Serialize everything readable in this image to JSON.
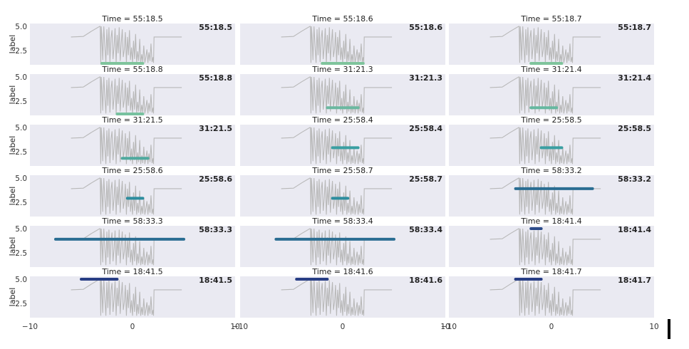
{
  "chart_data": {
    "type": "line",
    "layout": {
      "rows": 6,
      "cols": 3,
      "sharex": true,
      "sharey": true
    },
    "xlim": [
      -10,
      10
    ],
    "ylim": [
      1.0,
      5.3
    ],
    "x_ticks": [
      "−10",
      "0",
      "10"
    ],
    "y_ticks": [
      {
        "value": 5.0,
        "label": "5.0"
      },
      {
        "value": 2.5,
        "label": "2.5"
      }
    ],
    "ylabel": "label",
    "grid": false,
    "background": "#eaeaf2",
    "signal_color": "#b8b8b8",
    "signal": {
      "x": [
        -6.0,
        -4.8,
        -4.0,
        -3.2,
        -3.15,
        -3.1,
        -3.05,
        -3.0,
        -2.9,
        -2.8,
        -2.7,
        -2.6,
        -2.5,
        -2.4,
        -2.3,
        -2.2,
        -2.1,
        -2.0,
        -1.9,
        -1.8,
        -1.7,
        -1.6,
        -1.5,
        -1.4,
        -1.3,
        -1.2,
        -1.1,
        -1.0,
        -0.9,
        -0.8,
        -0.7,
        -0.6,
        -0.5,
        -0.4,
        -0.3,
        -0.2,
        -0.1,
        0.0,
        0.1,
        0.2,
        0.3,
        0.4,
        0.5,
        0.6,
        0.7,
        0.8,
        0.9,
        1.0,
        1.1,
        1.2,
        1.3,
        1.4,
        1.5,
        1.6,
        1.7,
        1.8,
        1.9,
        2.0,
        2.05,
        2.1,
        4.8
      ],
      "y": [
        3.9,
        3.95,
        4.5,
        5.0,
        5.0,
        1.2,
        5.0,
        4.2,
        1.5,
        5.0,
        3.0,
        1.2,
        4.7,
        2.0,
        4.9,
        1.3,
        3.8,
        4.6,
        1.6,
        2.9,
        4.8,
        1.2,
        4.1,
        2.2,
        4.9,
        1.4,
        3.3,
        4.7,
        1.8,
        2.6,
        4.4,
        1.2,
        3.9,
        2.0,
        4.6,
        1.5,
        2.8,
        1.2,
        3.5,
        1.6,
        4.2,
        1.2,
        2.4,
        1.4,
        3.7,
        1.2,
        2.1,
        1.3,
        3.0,
        1.2,
        1.8,
        2.6,
        1.2,
        2.3,
        1.4,
        3.2,
        1.3,
        1.8,
        1.2,
        3.9,
        3.9
      ]
    },
    "panels": [
      {
        "title": "Time = 55:18.5",
        "label": "55:18.5",
        "segment": {
          "x0": -3.0,
          "x1": 1.0,
          "y": 1.0
        },
        "color": "#7fc49c"
      },
      {
        "title": "Time = 55:18.6",
        "label": "55:18.6",
        "segment": {
          "x0": -2.0,
          "x1": 2.0,
          "y": 1.0
        },
        "color": "#7fc49c"
      },
      {
        "title": "Time = 55:18.7",
        "label": "55:18.7",
        "segment": {
          "x0": -2.0,
          "x1": 1.0,
          "y": 1.0
        },
        "color": "#7fc49c"
      },
      {
        "title": "Time = 55:18.8",
        "label": "55:18.8",
        "segment": {
          "x0": -1.5,
          "x1": 1.0,
          "y": 1.0
        },
        "color": "#77c19f"
      },
      {
        "title": "Time = 31:21.3",
        "label": "31:21.3",
        "segment": {
          "x0": -1.5,
          "x1": 1.5,
          "y": 1.8
        },
        "color": "#6bb8a0"
      },
      {
        "title": "Time = 31:21.4",
        "label": "31:21.4",
        "segment": {
          "x0": -2.0,
          "x1": 0.5,
          "y": 1.8
        },
        "color": "#66b8a0"
      },
      {
        "title": "Time = 31:21.5",
        "label": "31:21.5",
        "segment": {
          "x0": -1.0,
          "x1": 1.5,
          "y": 1.8
        },
        "color": "#4fa99e"
      },
      {
        "title": "Time = 25:58.4",
        "label": "25:58.4",
        "segment": {
          "x0": -1.0,
          "x1": 1.5,
          "y": 2.9
        },
        "color": "#3a9fa2"
      },
      {
        "title": "Time = 25:58.5",
        "label": "25:58.5",
        "segment": {
          "x0": -1.0,
          "x1": 1.0,
          "y": 2.9
        },
        "color": "#3a9fa2"
      },
      {
        "title": "Time = 25:58.6",
        "label": "25:58.6",
        "segment": {
          "x0": -0.5,
          "x1": 1.0,
          "y": 2.9
        },
        "color": "#2d8d9e"
      },
      {
        "title": "Time = 25:58.7",
        "label": "25:58.7",
        "segment": {
          "x0": -1.0,
          "x1": 0.5,
          "y": 2.9
        },
        "color": "#2d8d9e"
      },
      {
        "title": "Time = 58:33.2",
        "label": "58:33.2",
        "segment": {
          "x0": -3.5,
          "x1": 4.0,
          "y": 3.9
        },
        "color": "#2a6d92"
      },
      {
        "title": "Time = 58:33.3",
        "label": "58:33.3",
        "segment": {
          "x0": -7.5,
          "x1": 5.0,
          "y": 3.9
        },
        "color": "#2a6d92"
      },
      {
        "title": "Time = 58:33.4",
        "label": "58:33.4",
        "segment": {
          "x0": -6.5,
          "x1": 5.0,
          "y": 3.9
        },
        "color": "#2a6d92"
      },
      {
        "title": "Time = 18:41.4",
        "label": "18:41.4",
        "segment": {
          "x0": -2.0,
          "x1": -1.0,
          "y": 5.0
        },
        "color": "#2c4b89"
      },
      {
        "title": "Time = 18:41.5",
        "label": "18:41.5",
        "segment": {
          "x0": -5.0,
          "x1": -1.5,
          "y": 5.0
        },
        "color": "#273d84"
      },
      {
        "title": "Time = 18:41.6",
        "label": "18:41.6",
        "segment": {
          "x0": -4.5,
          "x1": -1.5,
          "y": 5.0
        },
        "color": "#273d84"
      },
      {
        "title": "Time = 18:41.7",
        "label": "18:41.7",
        "segment": {
          "x0": -3.5,
          "x1": -1.0,
          "y": 5.0
        },
        "color": "#273d84"
      }
    ]
  }
}
